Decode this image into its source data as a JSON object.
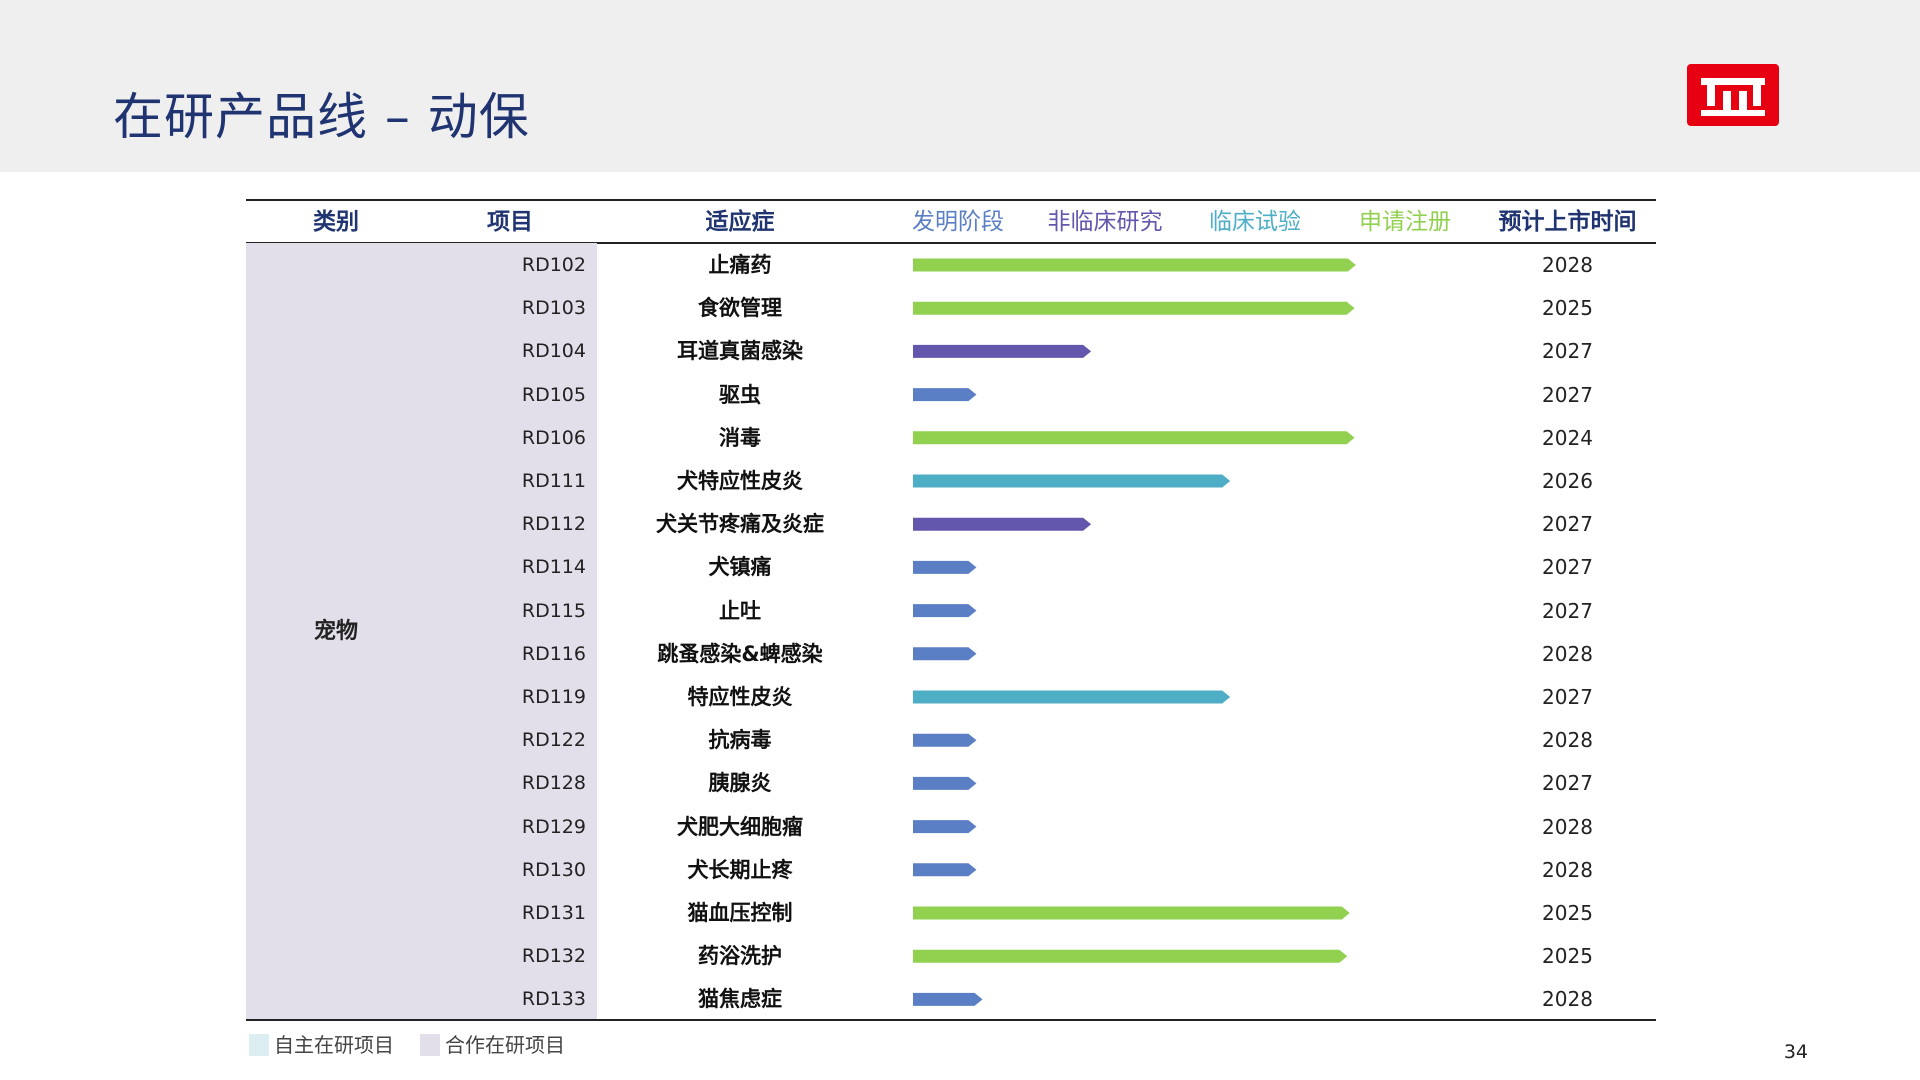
{
  "title": "在研产品线 – 动保",
  "page_number": "34",
  "colors": {
    "discovery": "#5b7fc4",
    "preclinical": "#6356ad",
    "clinical": "#4eaec6",
    "registration": "#92d050",
    "category_bg": "#e3dfea",
    "legend_in_house": "#ddeef2",
    "legend_partner": "#e3dfea",
    "title": "#1f3470"
  },
  "table": {
    "headers": {
      "category": "类别",
      "project": "项目",
      "indication": "适应症",
      "discovery": "发明阶段",
      "preclinical": "非临床研究",
      "clinical": "临床试验",
      "registration": "申请注册",
      "launch": "预计上市时间"
    },
    "category": "宠物"
  },
  "legend": {
    "in_house": "自主在研项目",
    "partner": "合作在研项目"
  },
  "chart_data": {
    "type": "bar",
    "orientation": "horizontal",
    "stages": [
      "发明阶段",
      "非临床研究",
      "临床试验",
      "申请注册"
    ],
    "value_unit": "stage progress (0 = start of 发明阶段, 4 = end of 申请注册)",
    "rows": [
      {
        "id": "RD102",
        "indication": "止痛药",
        "progress": 3.63,
        "stage": "registration",
        "launch": "2028"
      },
      {
        "id": "RD103",
        "indication": "食欲管理",
        "progress": 3.62,
        "stage": "registration",
        "launch": "2025"
      },
      {
        "id": "RD104",
        "indication": "耳道真菌感染",
        "progress": 1.46,
        "stage": "preclinical",
        "launch": "2027"
      },
      {
        "id": "RD105",
        "indication": "驱虫",
        "progress": 0.52,
        "stage": "discovery",
        "launch": "2027"
      },
      {
        "id": "RD106",
        "indication": "消毒",
        "progress": 3.62,
        "stage": "registration",
        "launch": "2024"
      },
      {
        "id": "RD111",
        "indication": "犬特应性皮炎",
        "progress": 2.6,
        "stage": "clinical",
        "launch": "2026"
      },
      {
        "id": "RD112",
        "indication": "犬关节疼痛及炎症",
        "progress": 1.46,
        "stage": "preclinical",
        "launch": "2027"
      },
      {
        "id": "RD114",
        "indication": "犬镇痛",
        "progress": 0.52,
        "stage": "discovery",
        "launch": "2027"
      },
      {
        "id": "RD115",
        "indication": "止吐",
        "progress": 0.52,
        "stage": "discovery",
        "launch": "2027"
      },
      {
        "id": "RD116",
        "indication": "跳蚤感染&蜱感染",
        "progress": 0.52,
        "stage": "discovery",
        "launch": "2028"
      },
      {
        "id": "RD119",
        "indication": "特应性皮炎",
        "progress": 2.6,
        "stage": "clinical",
        "launch": "2027"
      },
      {
        "id": "RD122",
        "indication": "抗病毒",
        "progress": 0.52,
        "stage": "discovery",
        "launch": "2028"
      },
      {
        "id": "RD128",
        "indication": "胰腺炎",
        "progress": 0.52,
        "stage": "discovery",
        "launch": "2027"
      },
      {
        "id": "RD129",
        "indication": "犬肥大细胞瘤",
        "progress": 0.52,
        "stage": "discovery",
        "launch": "2028"
      },
      {
        "id": "RD130",
        "indication": "犬长期止疼",
        "progress": 0.52,
        "stage": "discovery",
        "launch": "2028"
      },
      {
        "id": "RD131",
        "indication": "猫血压控制",
        "progress": 3.58,
        "stage": "registration",
        "launch": "2025"
      },
      {
        "id": "RD132",
        "indication": "药浴洗护",
        "progress": 3.56,
        "stage": "registration",
        "launch": "2025"
      },
      {
        "id": "RD133",
        "indication": "猫焦虑症",
        "progress": 0.57,
        "stage": "discovery",
        "launch": "2028"
      }
    ]
  }
}
